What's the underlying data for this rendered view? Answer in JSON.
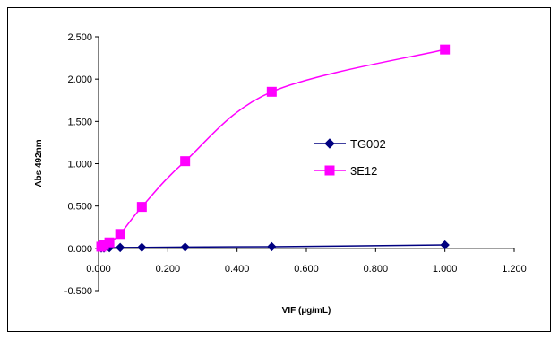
{
  "chart_data": {
    "type": "line",
    "title": "",
    "xlabel": "VIF (µg/mL)",
    "ylabel": "Abs 492nm",
    "xlim": [
      0,
      1.2
    ],
    "ylim": [
      -0.5,
      2.5
    ],
    "x_ticks": [
      0,
      0.2,
      0.4,
      0.6,
      0.8,
      1.0,
      1.2
    ],
    "x_tick_labels": [
      "0.000",
      "0.200",
      "0.400",
      "0.600",
      "0.800",
      "1.000",
      "1.200"
    ],
    "y_ticks": [
      -0.5,
      0,
      0.5,
      1.0,
      1.5,
      2.0,
      2.5
    ],
    "y_tick_labels": [
      "-0.500",
      "0.000",
      "0.500",
      "1.000",
      "1.500",
      "2.000",
      "2.500"
    ],
    "grid": false,
    "legend_position": "center-right",
    "series": [
      {
        "name": "TG002",
        "color": "#000080",
        "marker": "diamond",
        "x": [
          0.0078,
          0.0156,
          0.0313,
          0.0625,
          0.125,
          0.25,
          0.5,
          1.0
        ],
        "y": [
          0.005,
          0.005,
          0.008,
          0.01,
          0.012,
          0.015,
          0.02,
          0.04
        ]
      },
      {
        "name": "3E12",
        "color": "#FF00FF",
        "marker": "square",
        "x": [
          0.0078,
          0.0156,
          0.0313,
          0.0625,
          0.125,
          0.25,
          0.5,
          1.0
        ],
        "y": [
          0.02,
          0.04,
          0.07,
          0.17,
          0.49,
          1.03,
          1.85,
          2.35
        ]
      }
    ]
  }
}
